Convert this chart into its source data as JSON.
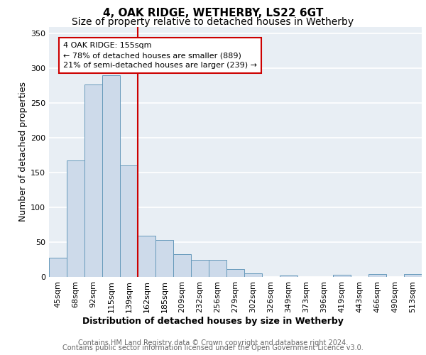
{
  "title1": "4, OAK RIDGE, WETHERBY, LS22 6GT",
  "title2": "Size of property relative to detached houses in Wetherby",
  "xlabel": "Distribution of detached houses by size in Wetherby",
  "ylabel": "Number of detached properties",
  "footer1": "Contains HM Land Registry data © Crown copyright and database right 2024.",
  "footer2": "Contains public sector information licensed under the Open Government Licence v3.0.",
  "categories": [
    "45sqm",
    "68sqm",
    "92sqm",
    "115sqm",
    "139sqm",
    "162sqm",
    "185sqm",
    "209sqm",
    "232sqm",
    "256sqm",
    "279sqm",
    "302sqm",
    "326sqm",
    "349sqm",
    "373sqm",
    "396sqm",
    "419sqm",
    "443sqm",
    "466sqm",
    "490sqm",
    "513sqm"
  ],
  "values": [
    28,
    167,
    277,
    290,
    160,
    59,
    53,
    33,
    25,
    25,
    11,
    5,
    0,
    2,
    0,
    0,
    3,
    0,
    4,
    0,
    4
  ],
  "bar_color": "#cddaea",
  "bar_edge_color": "#6699bb",
  "vline_color": "#cc0000",
  "annotation_text": "4 OAK RIDGE: 155sqm\n← 78% of detached houses are smaller (889)\n21% of semi-detached houses are larger (239) →",
  "annotation_box_color": "#cc0000",
  "ylim": [
    0,
    360
  ],
  "yticks": [
    0,
    50,
    100,
    150,
    200,
    250,
    300,
    350
  ],
  "bg_color": "#e8eef4",
  "grid_color": "white",
  "title1_fontsize": 11,
  "title2_fontsize": 10,
  "ylabel_fontsize": 9,
  "xlabel_fontsize": 9,
  "tick_fontsize": 8,
  "annot_fontsize": 8,
  "footer_fontsize": 7
}
